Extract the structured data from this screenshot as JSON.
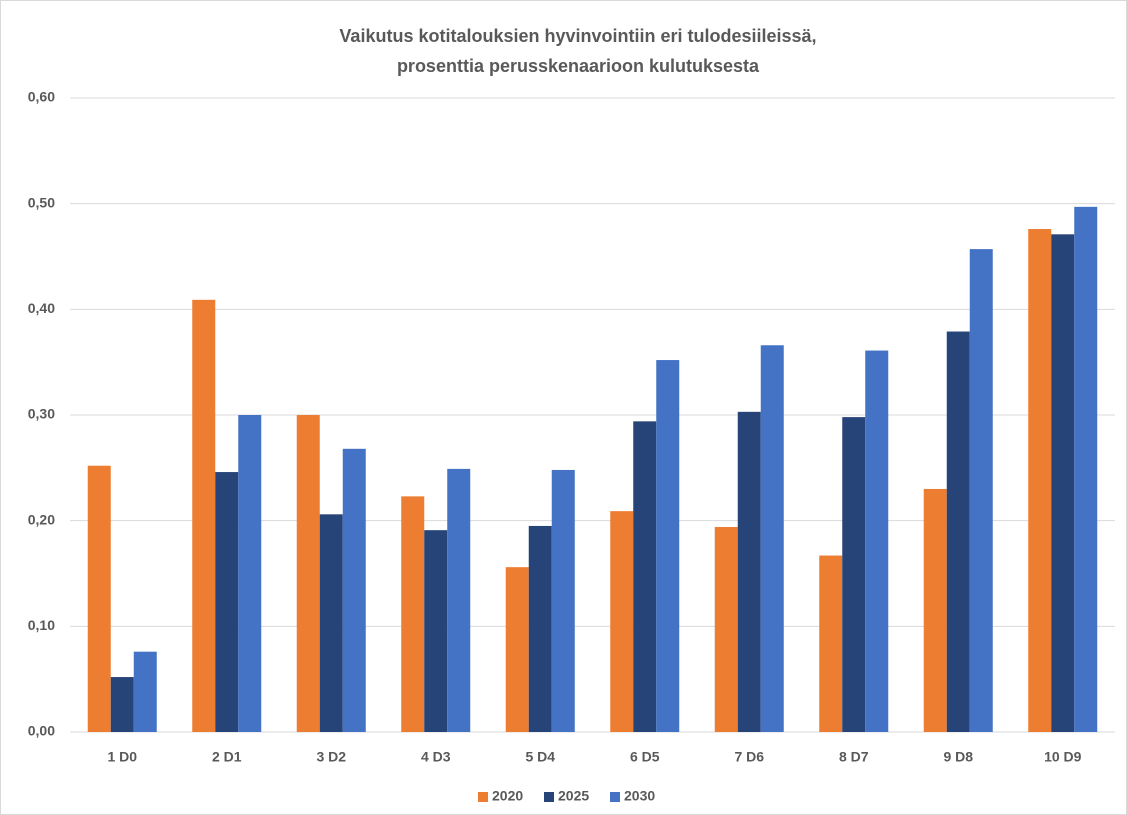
{
  "chart_data": {
    "type": "bar",
    "title": "Vaikutus kotitalouksien hyvinvointiin eri tulodesiileissä,",
    "subtitle": "prosenttia perusskenaarioon kulutuksesta",
    "categories": [
      "1 D0",
      "2 D1",
      "3 D2",
      "4 D3",
      "5 D4",
      "6 D5",
      "7 D6",
      "8 D7",
      "9 D8",
      "10 D9"
    ],
    "series": [
      {
        "name": "2020",
        "color": "#ed7d31",
        "values": [
          0.252,
          0.409,
          0.3,
          0.223,
          0.156,
          0.209,
          0.194,
          0.167,
          0.23,
          0.476
        ]
      },
      {
        "name": "2025",
        "color": "#264478",
        "values": [
          0.052,
          0.246,
          0.206,
          0.191,
          0.195,
          0.294,
          0.303,
          0.298,
          0.379,
          0.471
        ]
      },
      {
        "name": "2030",
        "color": "#4472c4",
        "values": [
          0.076,
          0.3,
          0.268,
          0.249,
          0.248,
          0.352,
          0.366,
          0.361,
          0.457,
          0.497
        ]
      }
    ],
    "ylim": [
      0,
      0.6
    ],
    "yticks": [
      {
        "value": 0,
        "label": "0,00"
      },
      {
        "value": 0.1,
        "label": "0,10"
      },
      {
        "value": 0.2,
        "label": "0,20"
      },
      {
        "value": 0.3,
        "label": "0,30"
      },
      {
        "value": 0.4,
        "label": "0,40"
      },
      {
        "value": 0.5,
        "label": "0,50"
      },
      {
        "value": 0.6,
        "label": "0,60"
      }
    ],
    "grid": true,
    "legend": "bottom"
  }
}
